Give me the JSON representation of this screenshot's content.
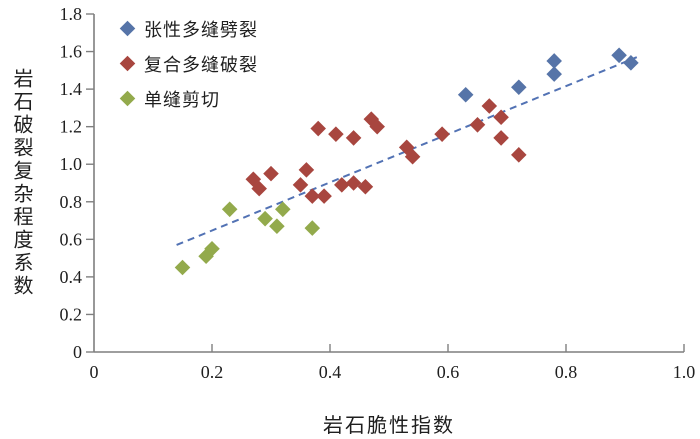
{
  "chart_data": {
    "type": "scatter",
    "title": "",
    "xlabel": "岩石脆性指数",
    "ylabel": "岩石破裂复杂程度系数",
    "xlim": [
      0,
      1.0
    ],
    "ylim": [
      0,
      1.8
    ],
    "x_ticks": [
      0,
      0.2,
      0.4,
      0.6,
      0.8,
      1.0
    ],
    "x_tick_labels": [
      "0",
      "0.2",
      "0.4",
      "0.6",
      "0.8",
      "1.0"
    ],
    "y_ticks": [
      0,
      0.2,
      0.4,
      0.6,
      0.8,
      1.0,
      1.2,
      1.4,
      1.6,
      1.8
    ],
    "y_tick_labels": [
      "0",
      "0.2",
      "0.4",
      "0.6",
      "0.8",
      "1.0",
      "1.2",
      "1.4",
      "1.6",
      "1.8"
    ],
    "grid": false,
    "legend_position": "top-left-inside",
    "axis_color": "#7f7f7f",
    "text_color": "#1f1f1f",
    "marker": "diamond",
    "series": [
      {
        "name": "张性多缝劈裂",
        "color": "#5674a8",
        "points": [
          [
            0.63,
            1.37
          ],
          [
            0.72,
            1.41
          ],
          [
            0.78,
            1.48
          ],
          [
            0.78,
            1.55
          ],
          [
            0.89,
            1.58
          ],
          [
            0.91,
            1.54
          ]
        ]
      },
      {
        "name": "复合多缝破裂",
        "color": "#a8463f",
        "points": [
          [
            0.27,
            0.92
          ],
          [
            0.28,
            0.87
          ],
          [
            0.3,
            0.95
          ],
          [
            0.35,
            0.89
          ],
          [
            0.36,
            0.97
          ],
          [
            0.37,
            0.83
          ],
          [
            0.39,
            0.83
          ],
          [
            0.42,
            0.89
          ],
          [
            0.44,
            0.9
          ],
          [
            0.46,
            0.88
          ],
          [
            0.38,
            1.19
          ],
          [
            0.41,
            1.16
          ],
          [
            0.44,
            1.14
          ],
          [
            0.47,
            1.24
          ],
          [
            0.48,
            1.2
          ],
          [
            0.53,
            1.09
          ],
          [
            0.54,
            1.04
          ],
          [
            0.59,
            1.16
          ],
          [
            0.65,
            1.21
          ],
          [
            0.67,
            1.31
          ],
          [
            0.69,
            1.25
          ],
          [
            0.69,
            1.14
          ],
          [
            0.72,
            1.05
          ]
        ]
      },
      {
        "name": "单缝剪切",
        "color": "#93aa4c",
        "points": [
          [
            0.15,
            0.45
          ],
          [
            0.19,
            0.51
          ],
          [
            0.2,
            0.55
          ],
          [
            0.23,
            0.76
          ],
          [
            0.29,
            0.71
          ],
          [
            0.31,
            0.67
          ],
          [
            0.32,
            0.76
          ],
          [
            0.37,
            0.66
          ]
        ]
      }
    ],
    "trendline": {
      "style": "dashed",
      "color": "#5272b4",
      "from": [
        0.14,
        0.57
      ],
      "to": [
        0.92,
        1.57
      ]
    }
  }
}
